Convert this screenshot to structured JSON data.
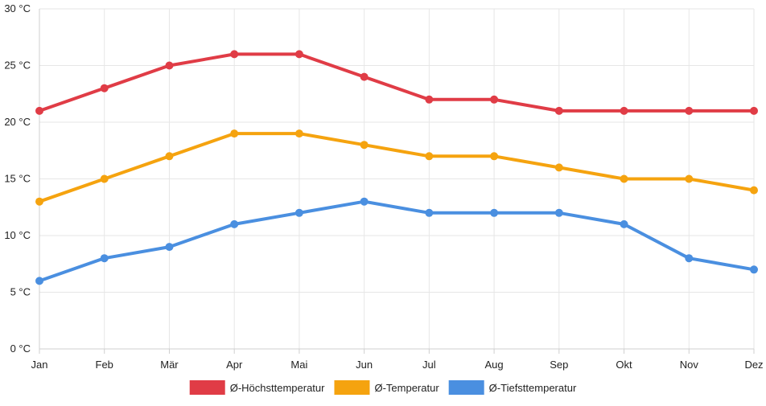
{
  "chart_data": {
    "type": "line",
    "categories": [
      "Jan",
      "Feb",
      "Mär",
      "Apr",
      "Mai",
      "Jun",
      "Jul",
      "Aug",
      "Sep",
      "Okt",
      "Nov",
      "Dez"
    ],
    "series": [
      {
        "name": "Ø-Höchsttemperatur",
        "color": "#e03c46",
        "values": [
          21,
          23,
          25,
          26,
          26,
          24,
          22,
          22,
          21,
          21,
          21,
          21
        ]
      },
      {
        "name": "Ø-Temperatur",
        "color": "#f5a30f",
        "values": [
          13,
          15,
          17,
          19,
          19,
          18,
          17,
          17,
          16,
          15,
          15,
          14
        ]
      },
      {
        "name": "Ø-Tiefsttemperatur",
        "color": "#4a8fe0",
        "values": [
          6,
          8,
          9,
          11,
          12,
          13,
          12,
          12,
          12,
          11,
          8,
          7
        ]
      }
    ],
    "yticks": [
      0,
      5,
      10,
      15,
      20,
      25,
      30
    ],
    "ytick_labels": [
      "0 °C",
      "5 °C",
      "10 °C",
      "15 °C",
      "20 °C",
      "25 °C",
      "30 °C"
    ],
    "ylim": [
      0,
      30
    ],
    "grid": true,
    "legend_position": "bottom-center"
  }
}
